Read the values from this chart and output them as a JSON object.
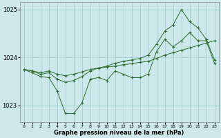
{
  "xlabel": "Graphe pression niveau de la mer (hPa)",
  "bg_color": "#cce8ea",
  "grid_color": "#99cccc",
  "line_color": "#2d6a2d",
  "x_values": [
    0,
    1,
    2,
    3,
    4,
    5,
    6,
    7,
    8,
    9,
    10,
    11,
    12,
    13,
    14,
    15,
    16,
    17,
    18,
    19,
    20,
    21,
    22,
    23
  ],
  "series_flat": [
    1023.75,
    1023.72,
    1023.68,
    1023.72,
    1023.65,
    1023.62,
    1023.65,
    1023.7,
    1023.75,
    1023.78,
    1023.8,
    1023.82,
    1023.85,
    1023.87,
    1023.9,
    1023.92,
    1023.98,
    1024.05,
    1024.1,
    1024.15,
    1024.2,
    1024.25,
    1024.3,
    1024.35
  ],
  "series_dip": [
    1023.75,
    1023.68,
    1023.6,
    1023.58,
    1023.3,
    1022.83,
    1022.83,
    1023.05,
    1023.55,
    1023.58,
    1023.52,
    1023.72,
    1023.65,
    1023.58,
    1023.58,
    1023.65,
    1024.12,
    1024.38,
    1024.22,
    1024.35,
    1024.52,
    1024.35,
    1024.35,
    1023.88
  ],
  "series_ramp": [
    1023.75,
    1023.72,
    1023.65,
    1023.68,
    1023.55,
    1023.48,
    1023.52,
    1023.6,
    1023.72,
    1023.78,
    1023.82,
    1023.88,
    1023.92,
    1023.95,
    1023.98,
    1024.05,
    1024.28,
    1024.55,
    1024.68,
    1025.0,
    1024.75,
    1024.62,
    1024.38,
    1023.95
  ],
  "ylim": [
    1022.65,
    1025.15
  ],
  "yticks": [
    1023,
    1024,
    1025
  ],
  "xlim": [
    -0.5,
    23.5
  ],
  "xticks": [
    0,
    1,
    2,
    3,
    4,
    5,
    6,
    7,
    8,
    9,
    10,
    11,
    12,
    13,
    14,
    15,
    16,
    17,
    18,
    19,
    20,
    21,
    22,
    23
  ]
}
